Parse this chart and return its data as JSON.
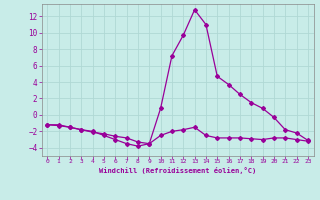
{
  "xlabel": "Windchill (Refroidissement éolien,°C)",
  "background_color": "#c8ece8",
  "line_color": "#990099",
  "grid_color": "#b0d8d4",
  "xlim": [
    -0.5,
    23.5
  ],
  "ylim": [
    -5,
    13.5
  ],
  "xticks": [
    0,
    1,
    2,
    3,
    4,
    5,
    6,
    7,
    8,
    9,
    10,
    11,
    12,
    13,
    14,
    15,
    16,
    17,
    18,
    19,
    20,
    21,
    22,
    23
  ],
  "yticks": [
    -4,
    -2,
    0,
    2,
    4,
    6,
    8,
    10,
    12
  ],
  "line1_y": [
    -1.2,
    -1.2,
    -1.5,
    -1.8,
    -2.0,
    -2.5,
    -3.0,
    -3.5,
    -3.8,
    -3.5,
    0.8,
    7.2,
    9.7,
    12.8,
    11.0,
    4.7,
    3.7,
    2.5,
    1.5,
    0.8,
    -0.3,
    -1.8,
    -2.2,
    -3.1
  ],
  "line2_y": [
    -1.2,
    -1.3,
    -1.5,
    -1.8,
    -2.1,
    -2.3,
    -2.6,
    -2.8,
    -3.3,
    -3.5,
    -2.5,
    -2.0,
    -1.8,
    -1.5,
    -2.5,
    -2.8,
    -2.8,
    -2.8,
    -2.9,
    -3.0,
    -2.8,
    -2.8,
    -3.0,
    -3.2
  ]
}
